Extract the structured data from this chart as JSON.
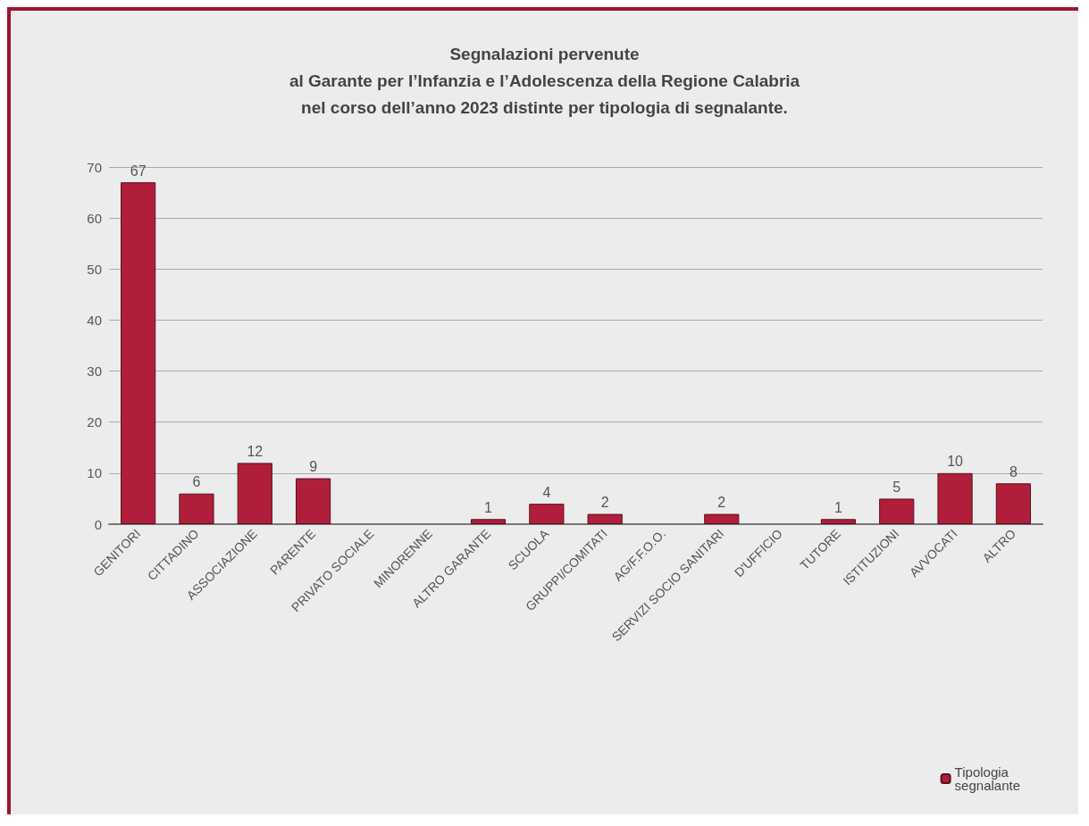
{
  "chart_data": {
    "type": "bar",
    "title": "Segnalazioni pervenute\nal Garante per l’Infanzia e l’Adolescenza della Regione Calabria\nnel corso dell’anno 2023 distinte per tipologia di segnalante.",
    "categories": [
      "GENITORI",
      "CITTADINO",
      "ASSOCIAZIONE",
      "PARENTE",
      "PRIVATO SOCIALE",
      "MINORENNE",
      "ALTRO GARANTE",
      "SCUOLA",
      "GRUPPI/COMITATI",
      "AG/F.F.O.O.",
      "SERVIZI SOCIO SANITARI",
      "D'UFFICIO",
      "TUTORE",
      "ISTITUZIONI",
      "AVVOCATI",
      "ALTRO"
    ],
    "series": [
      {
        "name": "Tipologia segnalante",
        "color": "#b01e3c",
        "values": [
          67,
          6,
          12,
          9,
          null,
          null,
          1,
          4,
          2,
          null,
          2,
          null,
          1,
          5,
          10,
          8
        ]
      }
    ],
    "ylim": [
      0,
      70
    ],
    "yticks": [
      0,
      10,
      20,
      30,
      40,
      50,
      60,
      70
    ],
    "grid": "y",
    "legend": "bottom right",
    "data_labels": true
  }
}
